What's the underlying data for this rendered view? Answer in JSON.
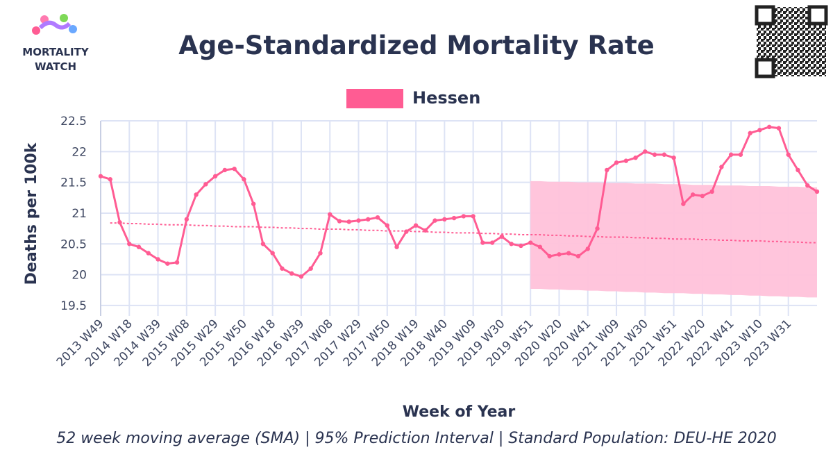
{
  "logo": [
    "MORTALITY",
    "WATCH"
  ],
  "chart_data": {
    "type": "line",
    "title": "Age-Standardized Mortality Rate",
    "y_label": "Deaths per 100k",
    "x_label": "Week of Year",
    "caption": "52 week moving average (SMA) | 95% Prediction Interval | Standard Population: DEU-HE 2020",
    "categories": [
      "2013 W49",
      null,
      null,
      "2014 W18",
      null,
      null,
      "2014 W39",
      null,
      null,
      "2015 W08",
      null,
      null,
      "2015 W29",
      null,
      null,
      "2015 W50",
      null,
      null,
      "2016 W18",
      null,
      null,
      "2016 W39",
      null,
      null,
      "2017 W08",
      null,
      null,
      "2017 W29",
      null,
      null,
      "2017 W50",
      null,
      null,
      "2018 W19",
      null,
      null,
      "2018 W40",
      null,
      null,
      "2019 W09",
      null,
      null,
      "2019 W30",
      null,
      null,
      "2019 W51",
      null,
      null,
      "2020 W20",
      null,
      null,
      "2020 W41",
      null,
      null,
      "2021 W09",
      null,
      null,
      "2021 W30",
      null,
      null,
      "2021 W51",
      null,
      null,
      "2022 W20",
      null,
      null,
      "2022 W41",
      null,
      null,
      "2023 W10",
      null,
      null,
      "2023 W31",
      null,
      null,
      null
    ],
    "series": [
      {
        "name": "Hessen",
        "color": "#ff5c93",
        "values": [
          21.6,
          21.55,
          20.85,
          20.5,
          20.45,
          20.35,
          20.25,
          20.18,
          20.2,
          20.9,
          21.3,
          21.47,
          21.6,
          21.7,
          21.72,
          21.55,
          21.15,
          20.5,
          20.35,
          20.1,
          20.02,
          19.97,
          20.1,
          20.35,
          20.98,
          20.87,
          20.86,
          20.88,
          20.9,
          20.93,
          20.8,
          20.45,
          20.7,
          20.8,
          20.72,
          20.88,
          20.9,
          20.92,
          20.95,
          20.95,
          20.52,
          20.52,
          20.62,
          20.5,
          20.47,
          20.52,
          20.45,
          20.3,
          20.33,
          20.35,
          20.3,
          20.42,
          20.75,
          21.7,
          21.82,
          21.85,
          21.9,
          22.0,
          21.95,
          21.95,
          21.9,
          21.15,
          21.3,
          21.28,
          21.35,
          21.75,
          21.95,
          21.95,
          22.3,
          22.35,
          22.4,
          22.38,
          21.95,
          21.7,
          21.45,
          21.35
        ]
      }
    ],
    "baseline_color": "#ff5c93",
    "baseline": [
      null,
      20.84,
      20.84,
      20.83,
      20.83,
      20.82,
      20.82,
      20.81,
      20.81,
      20.81,
      20.8,
      20.8,
      20.79,
      20.79,
      20.78,
      20.78,
      20.78,
      20.77,
      20.77,
      20.76,
      20.76,
      20.75,
      20.75,
      20.74,
      20.74,
      20.74,
      20.73,
      20.73,
      20.72,
      20.72,
      20.71,
      20.71,
      20.71,
      20.7,
      20.7,
      20.69,
      20.69,
      20.68,
      20.68,
      20.68,
      20.67,
      20.67,
      20.66,
      20.66,
      20.65,
      20.65,
      20.65,
      20.64,
      20.64,
      20.63,
      20.63,
      20.62,
      20.62,
      20.61,
      20.61,
      20.61,
      20.6,
      20.6,
      20.59,
      20.59,
      20.58,
      20.58,
      20.58,
      20.57,
      20.57,
      20.56,
      20.56,
      20.55,
      20.55,
      20.55,
      20.54,
      20.54,
      20.53,
      20.53,
      20.52,
      20.52
    ],
    "pi_color": "#ffc2da",
    "pi_upper": [
      null,
      null,
      null,
      null,
      null,
      null,
      null,
      null,
      null,
      null,
      null,
      null,
      null,
      null,
      null,
      null,
      null,
      null,
      null,
      null,
      null,
      null,
      null,
      null,
      null,
      null,
      null,
      null,
      null,
      null,
      null,
      null,
      null,
      null,
      null,
      null,
      null,
      null,
      null,
      null,
      null,
      null,
      null,
      null,
      null,
      21.52,
      21.52,
      21.51,
      21.51,
      21.51,
      21.5,
      21.5,
      21.5,
      21.49,
      21.49,
      21.49,
      21.48,
      21.48,
      21.48,
      21.47,
      21.47,
      21.47,
      21.46,
      21.46,
      21.46,
      21.45,
      21.45,
      21.45,
      21.44,
      21.44,
      21.44,
      21.43,
      21.43,
      21.43,
      21.42,
      21.42
    ],
    "pi_lower": [
      null,
      null,
      null,
      null,
      null,
      null,
      null,
      null,
      null,
      null,
      null,
      null,
      null,
      null,
      null,
      null,
      null,
      null,
      null,
      null,
      null,
      null,
      null,
      null,
      null,
      null,
      null,
      null,
      null,
      null,
      null,
      null,
      null,
      null,
      null,
      null,
      null,
      null,
      null,
      null,
      null,
      null,
      null,
      null,
      null,
      19.77,
      19.77,
      19.76,
      19.76,
      19.75,
      19.75,
      19.74,
      19.74,
      19.73,
      19.73,
      19.72,
      19.72,
      19.71,
      19.71,
      19.7,
      19.7,
      19.7,
      19.69,
      19.69,
      19.68,
      19.68,
      19.67,
      19.67,
      19.66,
      19.66,
      19.65,
      19.65,
      19.64,
      19.64,
      19.63,
      19.63
    ],
    "ylim": [
      19.33,
      22.5
    ],
    "yticks": [
      19.5,
      20,
      20.5,
      21,
      21.5,
      22,
      22.5
    ],
    "grid": true
  }
}
